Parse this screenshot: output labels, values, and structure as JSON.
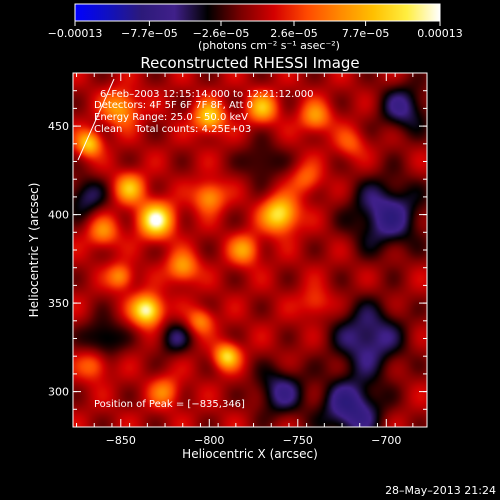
{
  "chart_data": {
    "type": "heatmap",
    "title": "Reconstructed RHESSI Image",
    "xlabel": "Heliocentric X (arcsec)",
    "ylabel": "Heliocentric Y (arcsec)",
    "xlim": [
      -877,
      -677
    ],
    "ylim": [
      280,
      480
    ],
    "x_ticks": [
      {
        "value": -850,
        "label": "−850"
      },
      {
        "value": -800,
        "label": "−800"
      },
      {
        "value": -750,
        "label": "−750"
      },
      {
        "value": -700,
        "label": "−700"
      }
    ],
    "y_ticks": [
      {
        "value": 300,
        "label": "300"
      },
      {
        "value": 350,
        "label": "350"
      },
      {
        "value": 400,
        "label": "400"
      },
      {
        "value": 450,
        "label": "450"
      }
    ],
    "colorbar": {
      "range": [
        -0.00013,
        0.00013
      ],
      "ticks": [
        {
          "value": -0.00013,
          "label": "−0.00013"
        },
        {
          "value": -7.7e-05,
          "label": "−7.7e−05"
        },
        {
          "value": -2.6e-05,
          "label": "−2.6e−05"
        },
        {
          "value": 2.6e-05,
          "label": "2.6e−05"
        },
        {
          "value": 7.7e-05,
          "label": "7.7e−05"
        },
        {
          "value": 0.00013,
          "label": "0.00013"
        }
      ],
      "unit_label": "(photons cm⁻² s⁻¹ asec⁻²)",
      "stops": [
        "#0000ff",
        "#1010c0",
        "#2c1a7a",
        "#40208a",
        "#000000",
        "#7a0000",
        "#d40000",
        "#ff4a00",
        "#ff8a00",
        "#ffc000",
        "#ffee40",
        "#ffffff"
      ]
    },
    "peak": [
      -835,
      346
    ],
    "blobs": [
      {
        "x": -835,
        "y": 346,
        "v": 1.0,
        "s": 6
      },
      {
        "x": -830,
        "y": 397,
        "v": 0.95,
        "s": 7
      },
      {
        "x": -845,
        "y": 415,
        "v": 0.6,
        "s": 6
      },
      {
        "x": -760,
        "y": 400,
        "v": 0.85,
        "s": 7
      },
      {
        "x": -790,
        "y": 320,
        "v": 0.75,
        "s": 5
      },
      {
        "x": -800,
        "y": 455,
        "v": 0.7,
        "s": 6
      },
      {
        "x": -770,
        "y": 460,
        "v": 0.6,
        "s": 6
      },
      {
        "x": -850,
        "y": 460,
        "v": 0.55,
        "s": 7
      },
      {
        "x": -868,
        "y": 440,
        "v": 0.7,
        "s": 5
      },
      {
        "x": -815,
        "y": 370,
        "v": 0.55,
        "s": 6
      },
      {
        "x": -780,
        "y": 380,
        "v": 0.5,
        "s": 6
      },
      {
        "x": -800,
        "y": 410,
        "v": 0.55,
        "s": 6
      },
      {
        "x": -860,
        "y": 390,
        "v": 0.45,
        "s": 6
      },
      {
        "x": -865,
        "y": 315,
        "v": 0.4,
        "s": 6
      },
      {
        "x": -825,
        "y": 300,
        "v": 0.4,
        "s": 6
      },
      {
        "x": -740,
        "y": 455,
        "v": 0.5,
        "s": 6
      },
      {
        "x": -740,
        "y": 350,
        "v": 0.3,
        "s": 6
      },
      {
        "x": -805,
        "y": 340,
        "v": 0.45,
        "s": 5
      },
      {
        "x": -745,
        "y": 420,
        "v": 0.35,
        "s": 6
      },
      {
        "x": -720,
        "y": 440,
        "v": 0.3,
        "s": 6
      },
      {
        "x": -850,
        "y": 365,
        "v": 0.5,
        "s": 5
      },
      {
        "x": -700,
        "y": 400,
        "v": -0.55,
        "s": 14
      },
      {
        "x": -710,
        "y": 330,
        "v": -0.5,
        "s": 14
      },
      {
        "x": -720,
        "y": 290,
        "v": -0.6,
        "s": 12
      },
      {
        "x": -760,
        "y": 300,
        "v": -0.45,
        "s": 10
      },
      {
        "x": -860,
        "y": 330,
        "v": -0.4,
        "s": 8
      },
      {
        "x": -870,
        "y": 410,
        "v": -0.4,
        "s": 8
      },
      {
        "x": -690,
        "y": 460,
        "v": -0.45,
        "s": 10
      },
      {
        "x": -820,
        "y": 330,
        "v": -0.35,
        "s": 7
      },
      {
        "x": -770,
        "y": 430,
        "v": -0.3,
        "s": 8
      }
    ]
  },
  "plot_info": {
    "time_range": "6–Feb–2003 12:15:14.000 to 12:21:12.000",
    "detectors": "Detectors: 4F 5F 6F 7F 8F, Att 0",
    "energy_range": "Energy Range: 25.0 – 50.0 keV",
    "method_counts": "Clean    Total counts: 4.25E+03",
    "peak_position": "Position of Peak = [−835,346]"
  },
  "timestamp": "28–May–2013 21:24"
}
